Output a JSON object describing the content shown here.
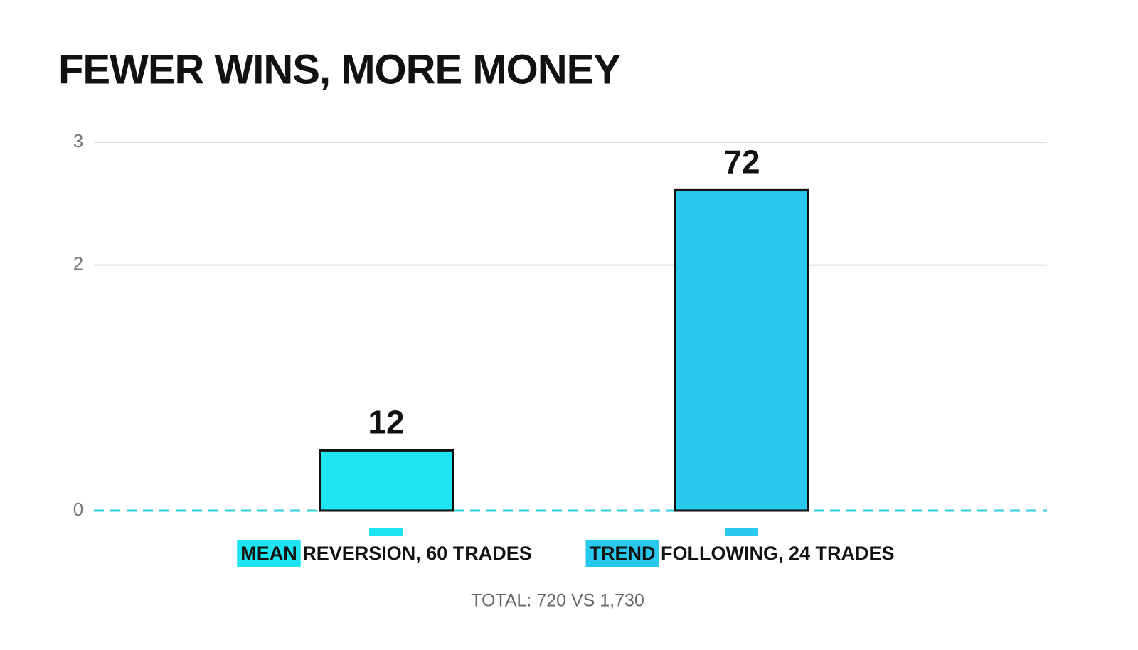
{
  "chart_data": {
    "type": "bar",
    "title": "FEWER WINS, MORE MONEY",
    "categories": [
      "MEAN REVERSION, 60 TRADES",
      "TREND FOLLOWING, 24 TRADES"
    ],
    "values": [
      0.49,
      2.61
    ],
    "annotations": [
      "12",
      "72"
    ],
    "colors": [
      "#1ee4f1",
      "#29c9ee"
    ],
    "ylim": [
      0,
      3
    ],
    "yticks": [
      0,
      2,
      3
    ],
    "grid": true,
    "note": "TOTAL: 720 VS 1,730"
  }
}
